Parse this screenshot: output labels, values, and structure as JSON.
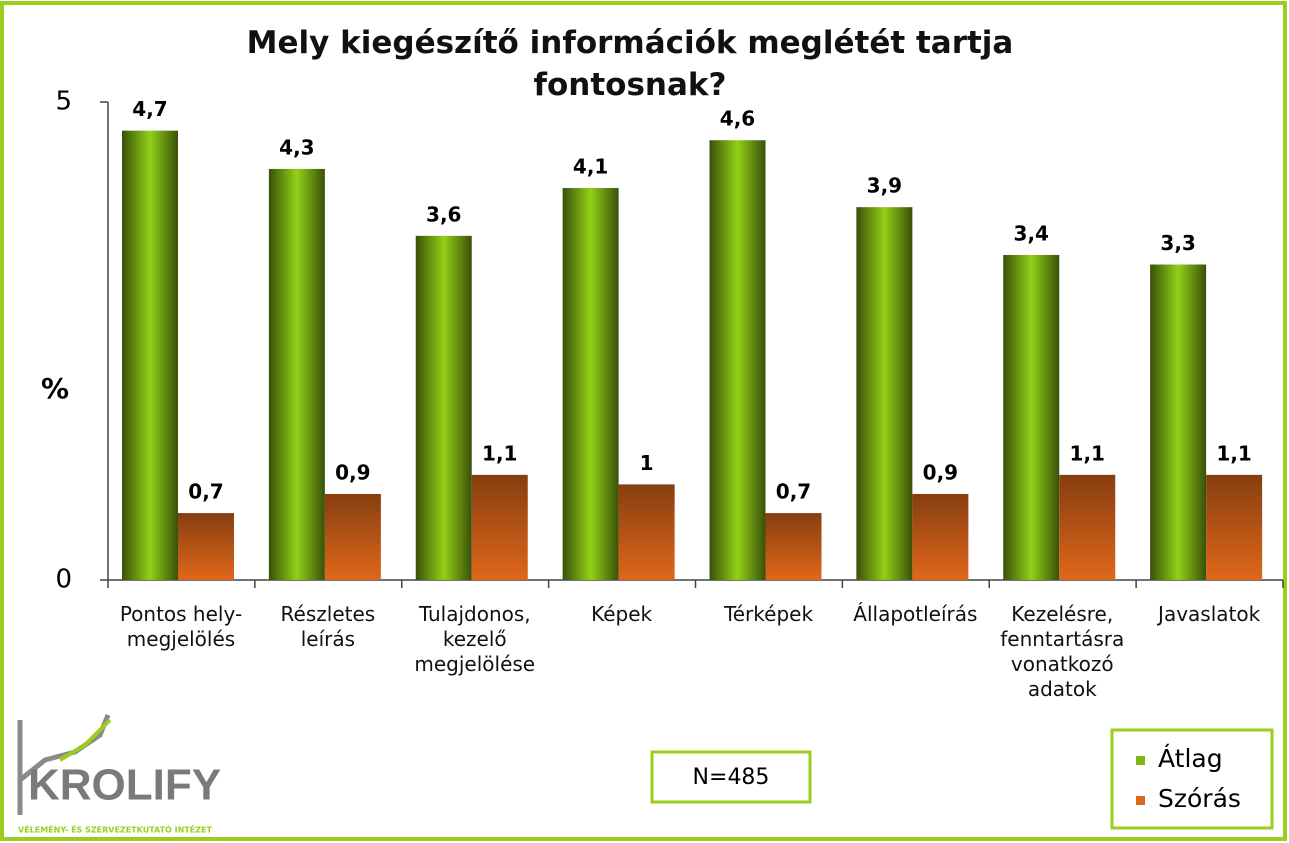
{
  "chart_data": {
    "type": "bar",
    "title": "Mely kiegészítő információk meglétét tartja fontosnak?",
    "ylabel": "%",
    "categories": [
      "Pontos hely-megjelölés",
      "Részletes leírás",
      "Tulajdonos, kezelő megjelölése",
      "Képek",
      "Térképek",
      "Állapotleírás",
      "Kezelésre, fenntartásra vonatkozó adatok",
      "Javaslatok"
    ],
    "series": [
      {
        "name": "Átlag",
        "color": "#7fb515",
        "values": [
          4.7,
          4.3,
          3.6,
          4.1,
          4.6,
          3.9,
          3.4,
          3.3
        ],
        "value_labels": [
          "4,7",
          "4,3",
          "3,6",
          "4,1",
          "4,6",
          "3,9",
          "3,4",
          "3,3"
        ]
      },
      {
        "name": "Szórás",
        "color": "#e0671a",
        "values": [
          0.7,
          0.9,
          1.1,
          1,
          0.7,
          0.9,
          1.1,
          1.1
        ],
        "value_labels": [
          "0,7",
          "0,9",
          "1,1",
          "1",
          "0,7",
          "0,9",
          "1,1",
          "1,1"
        ]
      }
    ],
    "ylim": [
      0,
      5
    ],
    "yticks": [
      0,
      5
    ],
    "annotation": "N=485",
    "legend": "bottom-right",
    "logo": {
      "name": "KROLIFY",
      "tagline": "VÉLEMÉNY- ÉS SZERVEZETKUTATÓ INTÉZET"
    }
  }
}
